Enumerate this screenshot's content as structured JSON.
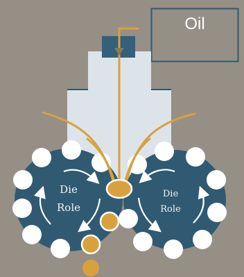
{
  "legend_box": {
    "text": "Oil"
  },
  "left_roll": {
    "line1": "Die",
    "line2": "Role"
  },
  "right_roll": {
    "line1": "Die",
    "line2": "Role"
  },
  "colors": {
    "background": "#968f86",
    "roll": "#2f5a72",
    "nozzle_block": "#34607a",
    "hopper": "#dde4e9",
    "oil_line": "#d9a13d",
    "pellet": "#ffffff",
    "box_border": "#2f5a72"
  },
  "icons": {
    "roll_arrows": "curved-rotation-arrow",
    "oil_flow": "downward-arrow"
  }
}
